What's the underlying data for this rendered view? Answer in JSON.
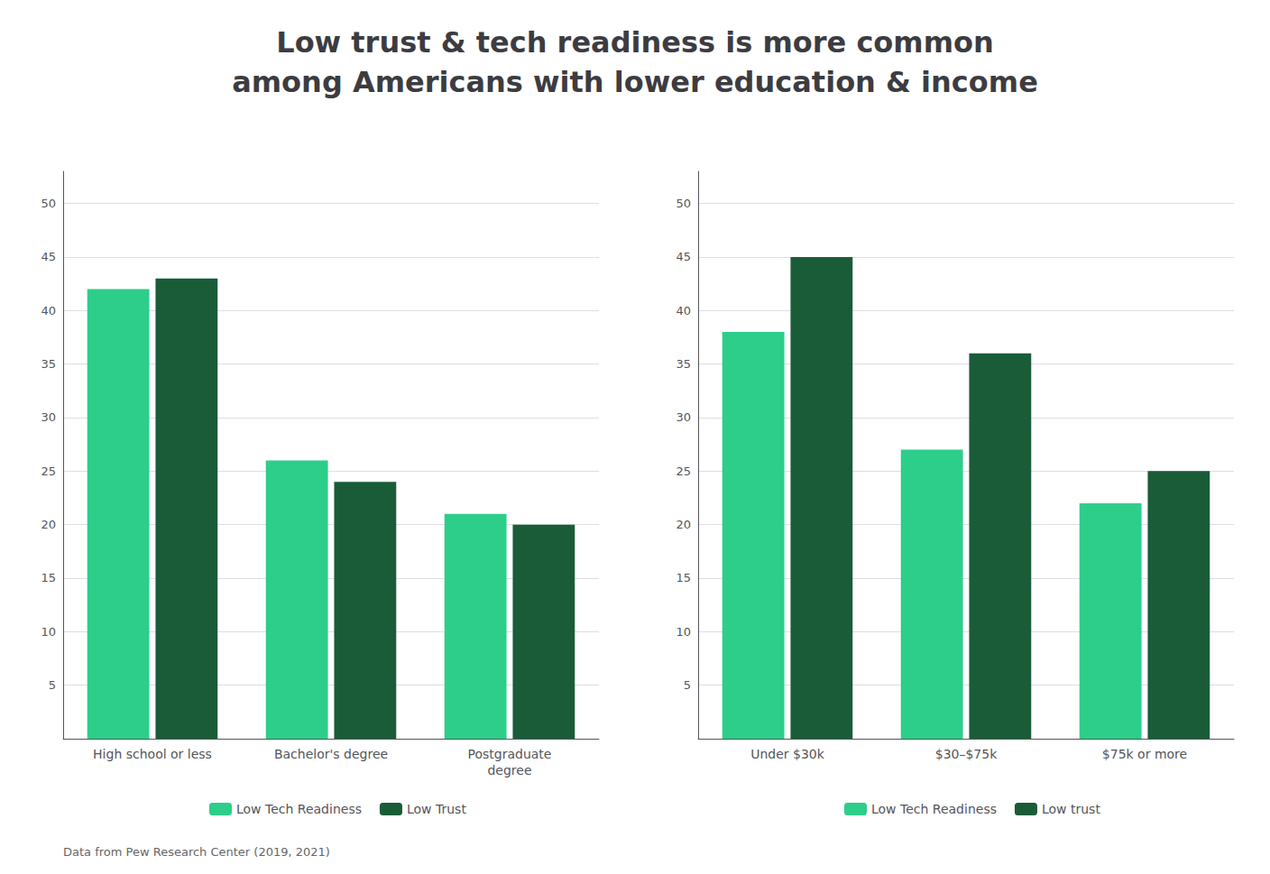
{
  "chart_data": [
    {
      "type": "bar",
      "title": "Low trust & tech readiness is more common\namong Americans with lower education & income",
      "annotations": [
        "Data from Pew Research Center (2019, 2021)"
      ],
      "categories": [
        "High school or less",
        "Bachelor's degree",
        "Postgraduate\ndegree"
      ],
      "series": [
        {
          "name": "Low Tech Readiness",
          "color": "#2DCE89",
          "values": [
            42,
            26,
            21
          ]
        },
        {
          "name": "Low Trust",
          "color": "#1A5C38",
          "values": [
            43,
            24,
            20
          ]
        }
      ],
      "ylim": [
        0,
        53
      ],
      "yticks": [
        5,
        10,
        15,
        20,
        25,
        30,
        35,
        40,
        45,
        50
      ],
      "grid": true,
      "legend": "bottom"
    },
    {
      "type": "bar",
      "categories": [
        "Under $30k",
        "$30–$75k",
        "$75k or more"
      ],
      "series": [
        {
          "name": "Low Tech Readiness",
          "color": "#2DCE89",
          "values": [
            38,
            27,
            22
          ]
        },
        {
          "name": "Low trust",
          "color": "#1A5C38",
          "values": [
            45,
            36,
            25
          ]
        }
      ],
      "ylim": [
        0,
        53
      ],
      "yticks": [
        5,
        10,
        15,
        20,
        25,
        30,
        35,
        40,
        45,
        50
      ],
      "grid": true,
      "legend": "bottom"
    }
  ]
}
